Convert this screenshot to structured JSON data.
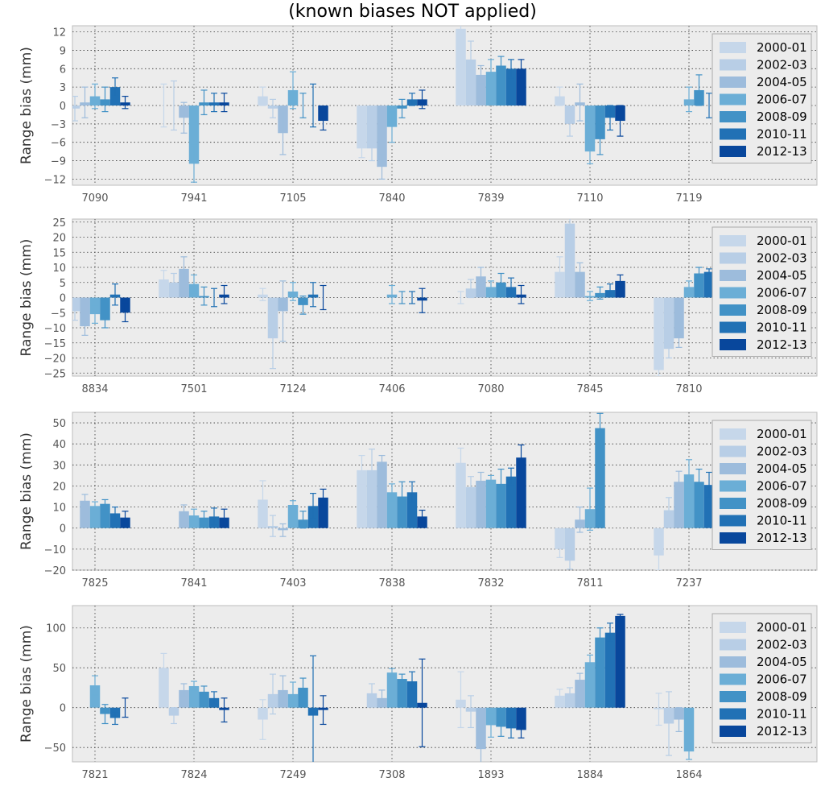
{
  "title": "(known biases NOT applied)",
  "series_names": [
    "2000-01",
    "2002-03",
    "2004-05",
    "2006-07",
    "2008-09",
    "2010-11",
    "2012-13"
  ],
  "colors": [
    "#c6d7ea",
    "#b8cee6",
    "#9dbcdc",
    "#6baed6",
    "#4292c6",
    "#2171b5",
    "#08479c"
  ],
  "chart_data": [
    {
      "type": "bar",
      "title": "",
      "ylabel": "Range bias (mm)",
      "ylim": [
        -13,
        13
      ],
      "yticks": [
        -12,
        -9,
        -6,
        -3,
        0,
        3,
        6,
        9,
        12
      ],
      "grid": true,
      "legend": "top-right",
      "categories": [
        "7090",
        "7941",
        "7105",
        "7840",
        "7839",
        "7110",
        "7119"
      ],
      "series": [
        {
          "name": "2000-01",
          "values": [
            -1.5,
            0,
            1.5,
            -7,
            12.5,
            1.5,
            0
          ],
          "errors": [
            1.5,
            3.5,
            1.5,
            1.5,
            1,
            1.5,
            0
          ]
        },
        {
          "name": "2002-03",
          "values": [
            -0.5,
            0,
            -0.5,
            -7,
            7.5,
            -3,
            0
          ],
          "errors": [
            2,
            4,
            1.5,
            2,
            3,
            2,
            0
          ]
        },
        {
          "name": "2004-05",
          "values": [
            0.5,
            -2,
            -4.5,
            -10,
            5,
            0.5,
            0
          ],
          "errors": [
            2.5,
            2.5,
            3.5,
            2,
            1.5,
            3,
            0
          ]
        },
        {
          "name": "2006-07",
          "values": [
            1.5,
            -9.5,
            2.5,
            -3.5,
            5.5,
            -7.5,
            1
          ],
          "errors": [
            2,
            3,
            3,
            2.5,
            2,
            2,
            2
          ]
        },
        {
          "name": "2008-09",
          "values": [
            1,
            0.5,
            0,
            -0.5,
            6.5,
            -5.5,
            2.5
          ],
          "errors": [
            2,
            2,
            2,
            1.5,
            1.5,
            2.5,
            2.5
          ]
        },
        {
          "name": "2010-11",
          "values": [
            3,
            0.5,
            0,
            1,
            6,
            -2,
            0
          ],
          "errors": [
            1.5,
            1.5,
            3.5,
            1,
            1.5,
            2,
            2
          ]
        },
        {
          "name": "2012-13",
          "values": [
            0.5,
            0.5,
            -2.5,
            1,
            6,
            -2.5,
            3
          ],
          "errors": [
            1,
            1.5,
            1.5,
            1.5,
            1.5,
            2.5,
            2.5
          ]
        }
      ]
    },
    {
      "type": "bar",
      "title": "",
      "ylabel": "Range bias (mm)",
      "ylim": [
        -26,
        26
      ],
      "yticks": [
        -25,
        -20,
        -15,
        -10,
        -5,
        0,
        5,
        10,
        15,
        20,
        25
      ],
      "grid": true,
      "legend": "top-right",
      "categories": [
        "8834",
        "7501",
        "7124",
        "7406",
        "7080",
        "7845",
        "7810"
      ],
      "series": [
        {
          "name": "2000-01",
          "values": [
            -10,
            6,
            1,
            0,
            0,
            8.5,
            -24
          ],
          "errors": [
            4,
            3,
            2,
            0,
            2,
            5,
            2
          ]
        },
        {
          "name": "2002-03",
          "values": [
            -4.5,
            5,
            -13.5,
            0,
            3,
            24.5,
            -17
          ],
          "errors": [
            3,
            3,
            10,
            0,
            3,
            2,
            3
          ]
        },
        {
          "name": "2004-05",
          "values": [
            -9.5,
            9.5,
            -4.5,
            0,
            7,
            8.5,
            -13.5
          ],
          "errors": [
            3,
            4,
            10,
            0,
            3,
            3,
            3
          ]
        },
        {
          "name": "2006-07",
          "values": [
            -5.5,
            4.5,
            2,
            1,
            3.5,
            0.5,
            3.5
          ],
          "errors": [
            3,
            3,
            3,
            3,
            2,
            1.5,
            2
          ]
        },
        {
          "name": "2008-09",
          "values": [
            -7.5,
            0.5,
            -2.5,
            0,
            5,
            1.5,
            8
          ],
          "errors": [
            2.5,
            3,
            3,
            2,
            3,
            2,
            2
          ]
        },
        {
          "name": "2010-11",
          "values": [
            1,
            0,
            1,
            0,
            3.5,
            2.5,
            8.5
          ],
          "errors": [
            3.5,
            3,
            4,
            2,
            3,
            2,
            1
          ]
        },
        {
          "name": "2012-13",
          "values": [
            -5,
            1,
            0,
            -1,
            1,
            5.5,
            7.5
          ],
          "errors": [
            3,
            3,
            4,
            4,
            3,
            2,
            1.5
          ]
        }
      ]
    },
    {
      "type": "bar",
      "title": "",
      "ylabel": "Range bias (mm)",
      "ylim": [
        -20,
        55
      ],
      "yticks": [
        -20,
        -10,
        0,
        10,
        20,
        30,
        40,
        50
      ],
      "grid": true,
      "legend": "top-right",
      "categories": [
        "7825",
        "7841",
        "7403",
        "7838",
        "7832",
        "7811",
        "7237"
      ],
      "series": [
        {
          "name": "2000-01",
          "values": [
            0,
            0,
            13.5,
            27.5,
            31,
            -10,
            -13
          ],
          "errors": [
            0,
            0,
            9,
            7,
            7,
            4,
            7
          ]
        },
        {
          "name": "2002-03",
          "values": [
            0,
            0,
            1,
            27.5,
            19.5,
            -15.5,
            8.5
          ],
          "errors": [
            0,
            0,
            5,
            10,
            5,
            4,
            6
          ]
        },
        {
          "name": "2004-05",
          "values": [
            13,
            8,
            -1,
            31.5,
            22.5,
            4,
            22
          ],
          "errors": [
            3,
            3,
            3,
            3,
            4,
            6,
            5
          ]
        },
        {
          "name": "2006-07",
          "values": [
            10.5,
            6,
            11,
            17,
            23,
            9,
            25.5
          ],
          "errors": [
            2,
            3,
            2,
            4,
            2,
            10,
            7
          ]
        },
        {
          "name": "2008-09",
          "values": [
            11.5,
            5,
            4,
            15,
            21,
            47.5,
            22
          ],
          "errors": [
            2,
            3,
            4,
            7,
            7,
            7,
            6
          ]
        },
        {
          "name": "2010-11",
          "values": [
            7,
            5.5,
            10.5,
            17,
            24.5,
            0,
            20.5
          ],
          "errors": [
            3,
            4,
            6,
            5,
            4,
            0,
            6
          ]
        },
        {
          "name": "2012-13",
          "values": [
            5,
            5,
            14.5,
            5.5,
            33.5,
            0,
            11
          ],
          "errors": [
            3,
            4,
            4,
            3,
            6,
            0,
            5
          ]
        }
      ]
    },
    {
      "type": "bar",
      "title": "",
      "ylabel": "Range bias (mm)",
      "ylim": [
        -68,
        128
      ],
      "yticks": [
        -50,
        0,
        50,
        100
      ],
      "grid": true,
      "legend": "top-right",
      "categories": [
        "7821",
        "7824",
        "7249",
        "7308",
        "1893",
        "1884",
        "1864"
      ],
      "series": [
        {
          "name": "2000-01",
          "values": [
            0,
            50,
            -15,
            0,
            10,
            15,
            -2
          ],
          "errors": [
            0,
            18,
            25,
            0,
            35,
            8,
            20
          ]
        },
        {
          "name": "2002-03",
          "values": [
            0,
            -10,
            17,
            18,
            -5,
            18,
            -20
          ],
          "errors": [
            0,
            10,
            25,
            12,
            20,
            7,
            40
          ]
        },
        {
          "name": "2004-05",
          "values": [
            0,
            22,
            22,
            12,
            -52,
            35,
            -15
          ],
          "errors": [
            0,
            8,
            18,
            10,
            20,
            8,
            15
          ]
        },
        {
          "name": "2006-07",
          "values": [
            28,
            27,
            17,
            44,
            -22,
            57,
            -55
          ],
          "errors": [
            12,
            6,
            15,
            5,
            15,
            9,
            10
          ]
        },
        {
          "name": "2008-09",
          "values": [
            -8,
            20,
            25,
            36,
            -24,
            88,
            0
          ],
          "errors": [
            12,
            7,
            12,
            6,
            12,
            12,
            0
          ]
        },
        {
          "name": "2010-11",
          "values": [
            -13,
            12,
            -10,
            33,
            -26,
            94,
            0
          ],
          "errors": [
            8,
            8,
            75,
            12,
            12,
            12,
            0
          ]
        },
        {
          "name": "2012-13",
          "values": [
            0,
            -3,
            -3,
            6,
            -28,
            115,
            0
          ],
          "errors": [
            12,
            15,
            18,
            55,
            10,
            2,
            0
          ]
        }
      ]
    }
  ]
}
